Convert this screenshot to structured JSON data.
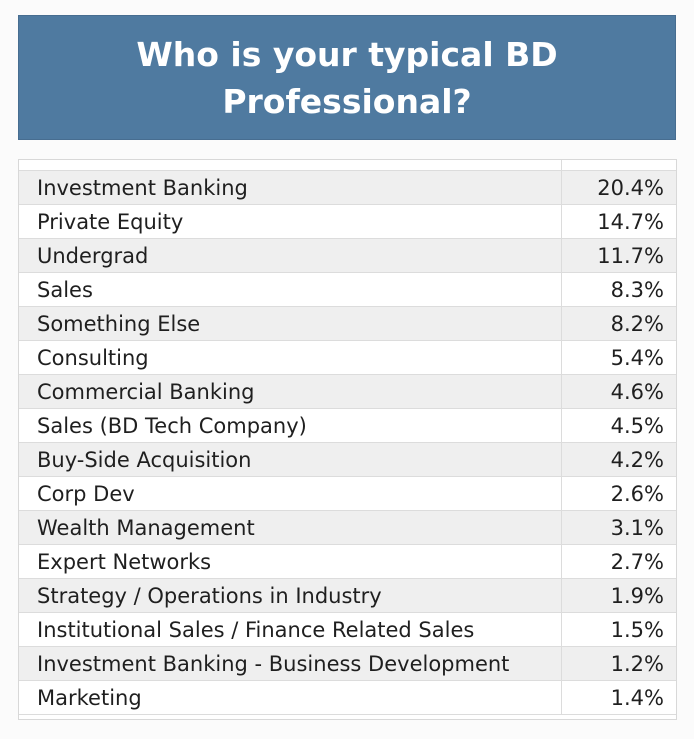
{
  "chart_data": {
    "type": "table",
    "title": "Who is your typical BD Professional?",
    "categories": [
      "Investment Banking",
      "Private Equity",
      "Undergrad",
      "Sales",
      "Something Else",
      "Consulting",
      "Commercial Banking",
      "Sales (BD Tech Company)",
      "Buy-Side Acquisition",
      "Corp Dev",
      "Wealth Management",
      "Expert Networks",
      "Strategy / Operations in Industry",
      "Institutional Sales / Finance Related Sales",
      "Investment Banking - Business Development",
      "Marketing"
    ],
    "values": [
      20.4,
      14.7,
      11.7,
      8.3,
      8.2,
      5.4,
      4.6,
      4.5,
      4.2,
      2.6,
      3.1,
      2.7,
      1.9,
      1.5,
      1.2,
      1.4
    ],
    "value_labels": [
      "20.4%",
      "14.7%",
      "11.7%",
      "8.3%",
      "8.2%",
      "5.4%",
      "4.6%",
      "4.5%",
      "4.2%",
      "2.6%",
      "3.1%",
      "2.7%",
      "1.9%",
      "1.5%",
      "1.2%",
      "1.4%"
    ]
  },
  "colors": {
    "header_bg": "#4f7aa0",
    "header_text": "#ffffff",
    "row_alt_bg": "#efefef",
    "row_bg": "#ffffff",
    "text": "#1f1f1f"
  }
}
